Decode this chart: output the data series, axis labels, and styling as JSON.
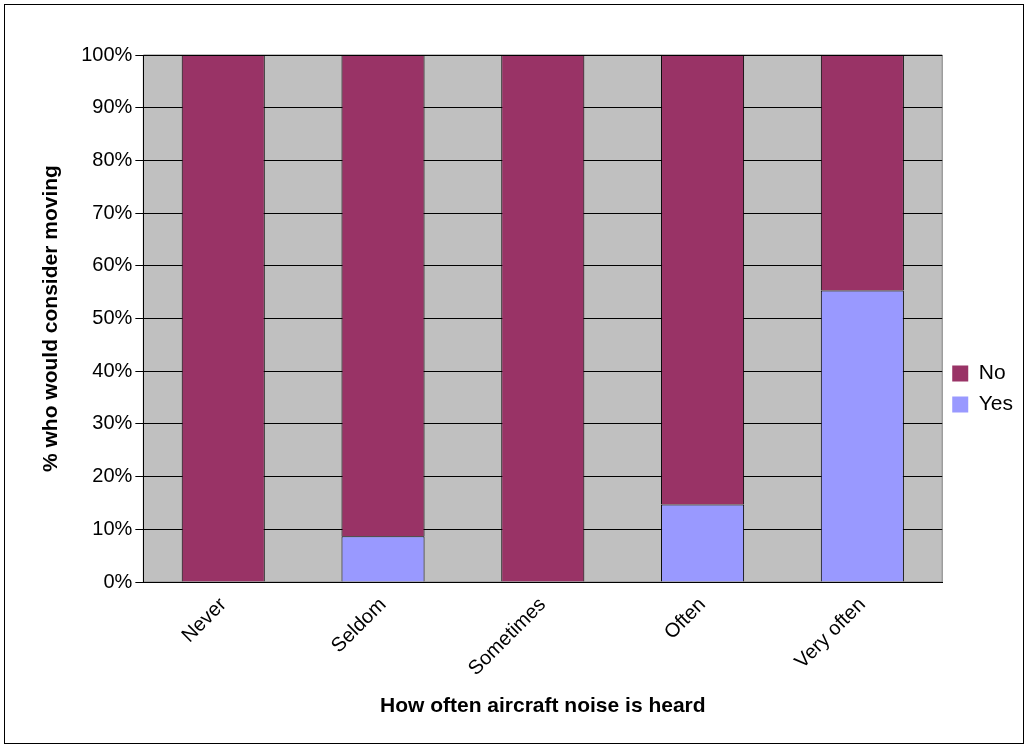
{
  "chart_data": {
    "type": "bar",
    "stacked": true,
    "xlabel": "How often aircraft noise is heard",
    "ylabel": "% who would consider moving",
    "categories": [
      "Never",
      "Seldom",
      "Sometimes",
      "Often",
      "Very often"
    ],
    "series": [
      {
        "name": "Yes",
        "color": "#9999ff",
        "values": [
          0,
          8.7,
          0,
          14.7,
          55.3
        ]
      },
      {
        "name": "No",
        "color": "#993366",
        "values": [
          100,
          91.3,
          100,
          85.3,
          44.7
        ]
      }
    ],
    "ylim": [
      0,
      100
    ],
    "yticks": [
      {
        "value": 0,
        "label": "0%"
      },
      {
        "value": 10,
        "label": "10%"
      },
      {
        "value": 20,
        "label": "20%"
      },
      {
        "value": 30,
        "label": "30%"
      },
      {
        "value": 40,
        "label": "40%"
      },
      {
        "value": 50,
        "label": "50%"
      },
      {
        "value": 60,
        "label": "60%"
      },
      {
        "value": 70,
        "label": "70%"
      },
      {
        "value": 80,
        "label": "80%"
      },
      {
        "value": 90,
        "label": "90%"
      },
      {
        "value": 100,
        "label": "100%"
      }
    ],
    "grid": "y",
    "legend": "right"
  }
}
